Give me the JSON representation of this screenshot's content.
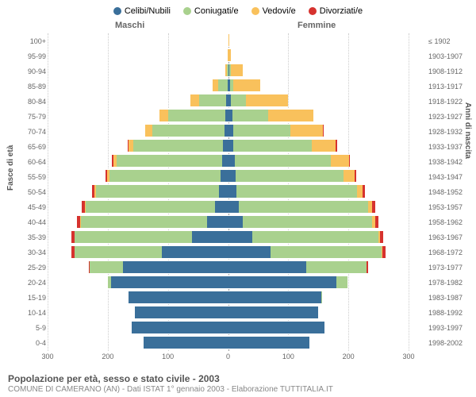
{
  "legend": [
    {
      "label": "Celibi/Nubili",
      "color": "#3a6f9a"
    },
    {
      "label": "Coniugati/e",
      "color": "#a9d18e"
    },
    {
      "label": "Vedovi/e",
      "color": "#f9c15c"
    },
    {
      "label": "Divorziati/e",
      "color": "#d6322e"
    }
  ],
  "gender_left": "Maschi",
  "gender_right": "Femmine",
  "axis_left": "Fasce di età",
  "axis_right": "Anni di nascita",
  "title": "Popolazione per età, sesso e stato civile - 2003",
  "subtitle": "COMUNE DI CAMERANO (AN) - Dati ISTAT 1° gennaio 2003 - Elaborazione TUTTITALIA.IT",
  "x_max": 300,
  "x_ticks": [
    300,
    200,
    100,
    0,
    100,
    200,
    300
  ],
  "colors": {
    "celibi": "#3a6f9a",
    "coniugati": "#a9d18e",
    "vedovi": "#f9c15c",
    "divorziati": "#d6322e",
    "grid": "#cccccc",
    "text": "#666666"
  },
  "rows": [
    {
      "age": "100+",
      "birth": "≤ 1902",
      "m": {
        "c": 0,
        "co": 0,
        "v": 0,
        "d": 0
      },
      "f": {
        "c": 0,
        "co": 0,
        "v": 2,
        "d": 0
      }
    },
    {
      "age": "95-99",
      "birth": "1903-1907",
      "m": {
        "c": 0,
        "co": 0,
        "v": 1,
        "d": 0
      },
      "f": {
        "c": 0,
        "co": 0,
        "v": 4,
        "d": 0
      }
    },
    {
      "age": "90-94",
      "birth": "1908-1912",
      "m": {
        "c": 0,
        "co": 2,
        "v": 3,
        "d": 0
      },
      "f": {
        "c": 2,
        "co": 2,
        "v": 20,
        "d": 0
      }
    },
    {
      "age": "85-89",
      "birth": "1913-1917",
      "m": {
        "c": 1,
        "co": 15,
        "v": 10,
        "d": 0
      },
      "f": {
        "c": 3,
        "co": 6,
        "v": 45,
        "d": 0
      }
    },
    {
      "age": "80-84",
      "birth": "1918-1922",
      "m": {
        "c": 3,
        "co": 45,
        "v": 15,
        "d": 0
      },
      "f": {
        "c": 5,
        "co": 25,
        "v": 70,
        "d": 0
      }
    },
    {
      "age": "75-79",
      "birth": "1923-1927",
      "m": {
        "c": 4,
        "co": 95,
        "v": 15,
        "d": 0
      },
      "f": {
        "c": 7,
        "co": 60,
        "v": 75,
        "d": 0
      }
    },
    {
      "age": "70-74",
      "birth": "1928-1932",
      "m": {
        "c": 6,
        "co": 120,
        "v": 12,
        "d": 0
      },
      "f": {
        "c": 8,
        "co": 95,
        "v": 55,
        "d": 1
      }
    },
    {
      "age": "65-69",
      "birth": "1933-1937",
      "m": {
        "c": 8,
        "co": 150,
        "v": 8,
        "d": 1
      },
      "f": {
        "c": 9,
        "co": 130,
        "v": 40,
        "d": 2
      }
    },
    {
      "age": "60-64",
      "birth": "1938-1942",
      "m": {
        "c": 10,
        "co": 175,
        "v": 6,
        "d": 2
      },
      "f": {
        "c": 11,
        "co": 160,
        "v": 30,
        "d": 2
      }
    },
    {
      "age": "55-59",
      "birth": "1943-1947",
      "m": {
        "c": 12,
        "co": 185,
        "v": 4,
        "d": 3
      },
      "f": {
        "c": 12,
        "co": 180,
        "v": 18,
        "d": 3
      }
    },
    {
      "age": "50-54",
      "birth": "1948-1952",
      "m": {
        "c": 15,
        "co": 205,
        "v": 2,
        "d": 4
      },
      "f": {
        "c": 14,
        "co": 200,
        "v": 10,
        "d": 4
      }
    },
    {
      "age": "45-49",
      "birth": "1953-1957",
      "m": {
        "c": 22,
        "co": 215,
        "v": 1,
        "d": 5
      },
      "f": {
        "c": 18,
        "co": 215,
        "v": 6,
        "d": 5
      }
    },
    {
      "age": "40-44",
      "birth": "1958-1962",
      "m": {
        "c": 35,
        "co": 210,
        "v": 1,
        "d": 5
      },
      "f": {
        "c": 25,
        "co": 215,
        "v": 4,
        "d": 6
      }
    },
    {
      "age": "35-39",
      "birth": "1963-1967",
      "m": {
        "c": 60,
        "co": 195,
        "v": 0,
        "d": 5
      },
      "f": {
        "c": 40,
        "co": 210,
        "v": 2,
        "d": 6
      }
    },
    {
      "age": "30-34",
      "birth": "1968-1972",
      "m": {
        "c": 110,
        "co": 145,
        "v": 0,
        "d": 5
      },
      "f": {
        "c": 70,
        "co": 185,
        "v": 1,
        "d": 6
      }
    },
    {
      "age": "25-29",
      "birth": "1973-1977",
      "m": {
        "c": 175,
        "co": 55,
        "v": 0,
        "d": 2
      },
      "f": {
        "c": 130,
        "co": 100,
        "v": 0,
        "d": 3
      }
    },
    {
      "age": "20-24",
      "birth": "1978-1982",
      "m": {
        "c": 195,
        "co": 5,
        "v": 0,
        "d": 0
      },
      "f": {
        "c": 180,
        "co": 18,
        "v": 0,
        "d": 0
      }
    },
    {
      "age": "15-19",
      "birth": "1983-1987",
      "m": {
        "c": 165,
        "co": 0,
        "v": 0,
        "d": 0
      },
      "f": {
        "c": 155,
        "co": 1,
        "v": 0,
        "d": 0
      }
    },
    {
      "age": "10-14",
      "birth": "1988-1992",
      "m": {
        "c": 155,
        "co": 0,
        "v": 0,
        "d": 0
      },
      "f": {
        "c": 150,
        "co": 0,
        "v": 0,
        "d": 0
      }
    },
    {
      "age": "5-9",
      "birth": "1993-1997",
      "m": {
        "c": 160,
        "co": 0,
        "v": 0,
        "d": 0
      },
      "f": {
        "c": 160,
        "co": 0,
        "v": 0,
        "d": 0
      }
    },
    {
      "age": "0-4",
      "birth": "1998-2002",
      "m": {
        "c": 140,
        "co": 0,
        "v": 0,
        "d": 0
      },
      "f": {
        "c": 135,
        "co": 0,
        "v": 0,
        "d": 0
      }
    }
  ]
}
